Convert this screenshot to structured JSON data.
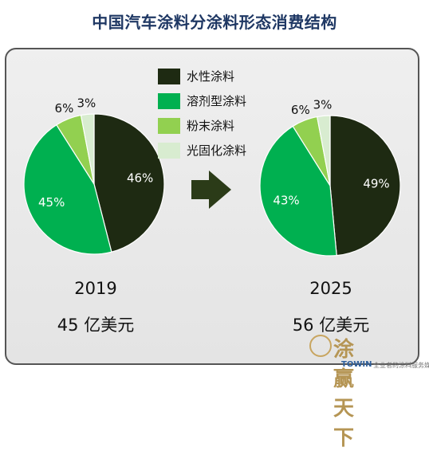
{
  "title": "中国汽车涂料分涂料形态消费结构",
  "chart_data": [
    {
      "type": "pie",
      "year": "2019",
      "total": "45 亿美元",
      "slices": [
        {
          "name": "水性涂料",
          "value": 46,
          "label": "46%"
        },
        {
          "name": "溶剂型涂料",
          "value": 45,
          "label": "45%"
        },
        {
          "name": "粉末涂料",
          "value": 6,
          "label": "6%"
        },
        {
          "name": "光固化涂料",
          "value": 3,
          "label": "3%"
        }
      ]
    },
    {
      "type": "pie",
      "year": "2025",
      "total": "56 亿美元",
      "slices": [
        {
          "name": "水性涂料",
          "value": 49,
          "label": "49%"
        },
        {
          "name": "溶剂型涂料",
          "value": 43,
          "label": "43%"
        },
        {
          "name": "粉末涂料",
          "value": 6,
          "label": "6%"
        },
        {
          "name": "光固化涂料",
          "value": 3,
          "label": "3%"
        }
      ]
    }
  ],
  "legend": [
    {
      "label": "水性涂料",
      "color": "#1e2a12"
    },
    {
      "label": "溶剂型涂料",
      "color": "#00b050"
    },
    {
      "label": "粉末涂料",
      "color": "#92d050"
    },
    {
      "label": "光固化涂料",
      "color": "#d8ecd0"
    }
  ],
  "arrow_color": "#2b3b18",
  "watermark": {
    "text": "涂赢天下",
    "brand": "TOWIN",
    "slogan": "全业者的涂料服务媒体"
  }
}
